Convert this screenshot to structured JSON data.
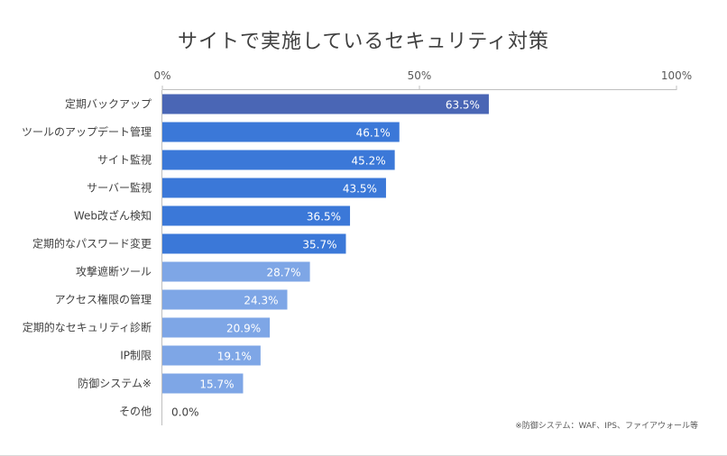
{
  "chart_data": {
    "type": "bar",
    "orientation": "horizontal",
    "title": "サイトで実施しているセキュリティ対策",
    "categories": [
      "定期バックアップ",
      "ツールのアップデート管理",
      "サイト監視",
      "サーバー監視",
      "Web改ざん検知",
      "定期的なパスワード変更",
      "攻撃遮断ツール",
      "アクセス権限の管理",
      "定期的なセキュリティ診断",
      "IP制限",
      "防御システム※",
      "その他"
    ],
    "values": [
      63.5,
      46.1,
      45.2,
      43.5,
      36.5,
      35.7,
      28.7,
      24.3,
      20.9,
      19.1,
      15.7,
      0.0
    ],
    "value_labels": [
      "63.5%",
      "46.1%",
      "45.2%",
      "43.5%",
      "36.5%",
      "35.7%",
      "28.7%",
      "24.3%",
      "20.9%",
      "19.1%",
      "15.7%",
      "0.0%"
    ],
    "bar_colors": [
      "#4a66b5",
      "#3b78d8",
      "#3b78d8",
      "#3b78d8",
      "#3b78d8",
      "#3b78d8",
      "#7ea6e6",
      "#7ea6e6",
      "#7ea6e6",
      "#7ea6e6",
      "#7ea6e6",
      "#7ea6e6"
    ],
    "xlim": [
      0,
      100
    ],
    "x_ticks": [
      0,
      50,
      100
    ],
    "x_tick_labels": [
      "0%",
      "50%",
      "100%"
    ],
    "xlabel": "",
    "ylabel": "",
    "grid": false,
    "note": "※防御システム：WAF、IPS、ファイアウォール等"
  }
}
